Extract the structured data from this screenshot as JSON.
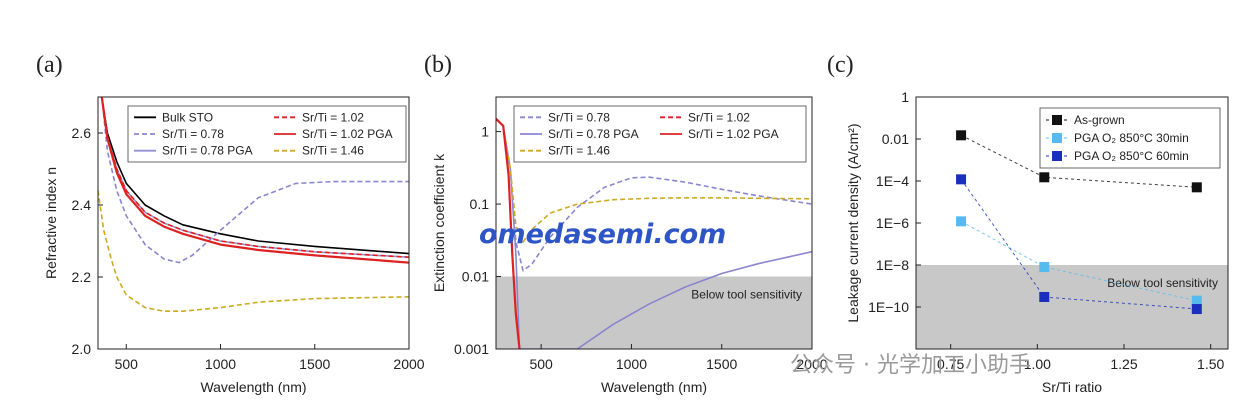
{
  "chart_data": [
    {
      "type": "line",
      "panel_label": "(a)",
      "xlabel": "Wavelength (nm)",
      "ylabel": "Refractive index n",
      "xlim": [
        350,
        2000
      ],
      "ylim": [
        2.0,
        2.7
      ],
      "xticks": [
        500,
        1000,
        1500,
        2000
      ],
      "yticks": [
        2.0,
        2.2,
        2.4,
        2.6
      ],
      "ytick_labels": [
        "2.0",
        "2.2",
        "2.4",
        "2.6"
      ],
      "legend_position": "top",
      "series": [
        {
          "name": "Bulk STO",
          "color": "#000000",
          "dash": "solid",
          "x": [
            370,
            400,
            450,
            500,
            600,
            700,
            800,
            1000,
            1200,
            1500,
            2000
          ],
          "y": [
            2.7,
            2.6,
            2.52,
            2.46,
            2.4,
            2.37,
            2.345,
            2.32,
            2.3,
            2.285,
            2.265
          ]
        },
        {
          "name": "Sr/Ti = 0.78",
          "color": "#8a85cf",
          "dash": "dashed",
          "x": [
            370,
            400,
            450,
            500,
            600,
            700,
            780,
            850,
            1000,
            1200,
            1400,
            1600,
            2000
          ],
          "y": [
            2.7,
            2.55,
            2.44,
            2.37,
            2.29,
            2.25,
            2.24,
            2.26,
            2.33,
            2.42,
            2.46,
            2.465,
            2.465
          ]
        },
        {
          "name": "Sr/Ti = 0.78 PGA",
          "color": "#9590d6",
          "dash": "solid",
          "x": [
            370,
            400,
            450,
            500,
            600,
            700,
            800,
            1000,
            1200,
            1500,
            2000
          ],
          "y": [
            2.7,
            2.59,
            2.5,
            2.44,
            2.38,
            2.35,
            2.33,
            2.3,
            2.285,
            2.27,
            2.255
          ]
        },
        {
          "name": "Sr/Ti = 1.02",
          "color": "#e02020",
          "dash": "dashed",
          "x": [
            370,
            400,
            450,
            500,
            600,
            700,
            800,
            1000,
            1200,
            1500,
            2000
          ],
          "y": [
            2.7,
            2.59,
            2.5,
            2.44,
            2.38,
            2.35,
            2.33,
            2.3,
            2.285,
            2.27,
            2.255
          ]
        },
        {
          "name": "Sr/Ti = 1.02 PGA",
          "color": "#dd2222",
          "dash": "solid",
          "x": [
            370,
            400,
            450,
            500,
            600,
            700,
            800,
            1000,
            1200,
            1500,
            2000
          ],
          "y": [
            2.7,
            2.585,
            2.49,
            2.43,
            2.37,
            2.34,
            2.32,
            2.29,
            2.275,
            2.26,
            2.24
          ]
        },
        {
          "name": "Sr/Ti = 1.46",
          "color": "#ccaa22",
          "dash": "dashed",
          "x": [
            350,
            380,
            420,
            450,
            500,
            600,
            700,
            800,
            1000,
            1200,
            1500,
            2000
          ],
          "y": [
            2.44,
            2.33,
            2.25,
            2.2,
            2.15,
            2.115,
            2.105,
            2.105,
            2.115,
            2.13,
            2.14,
            2.145
          ]
        }
      ]
    },
    {
      "type": "line",
      "panel_label": "(b)",
      "xlabel": "Wavelength (nm)",
      "ylabel": "Extinction coefficient k",
      "xlim": [
        250,
        2000
      ],
      "ylim": [
        0.001,
        3
      ],
      "yscale": "log",
      "xticks": [
        500,
        1000,
        1500,
        2000
      ],
      "yticks": [
        0.001,
        0.01,
        0.1,
        1
      ],
      "ytick_labels": [
        "0.001",
        "0.01",
        "0.1",
        "1"
      ],
      "legend_position": "top",
      "shaded_region": {
        "label": "Below tool sensitivity",
        "below": 0.01
      },
      "series": [
        {
          "name": "Sr/Ti = 0.78",
          "color": "#8a85cf",
          "dash": "dashed",
          "x": [
            250,
            290,
            330,
            360,
            400,
            450,
            550,
            700,
            850,
            1000,
            1100,
            1300,
            1500,
            1700,
            2000
          ],
          "y": [
            1.5,
            1.2,
            0.3,
            0.03,
            0.012,
            0.015,
            0.035,
            0.09,
            0.17,
            0.23,
            0.235,
            0.2,
            0.16,
            0.13,
            0.1
          ]
        },
        {
          "name": "Sr/Ti = 0.78 PGA",
          "color": "#8a85cf",
          "dash": "solid",
          "x": [
            250,
            290,
            330,
            360,
            380,
            700,
            900,
            1100,
            1300,
            1500,
            1700,
            2000
          ],
          "y": [
            1.5,
            1.2,
            0.3,
            0.02,
            0.001,
            0.001,
            0.0022,
            0.0042,
            0.0072,
            0.011,
            0.015,
            0.022
          ]
        },
        {
          "name": "Sr/Ti = 1.46",
          "color": "#ccaa22",
          "dash": "dashed",
          "x": [
            250,
            290,
            330,
            360,
            400,
            450,
            550,
            700,
            900,
            1100,
            1300,
            1500,
            1700,
            2000
          ],
          "y": [
            1.5,
            1.2,
            0.3,
            0.05,
            0.03,
            0.045,
            0.075,
            0.1,
            0.115,
            0.12,
            0.122,
            0.122,
            0.12,
            0.118
          ]
        },
        {
          "name": "Sr/Ti = 1.02",
          "color": "#e02020",
          "dash": "dashed",
          "x": [
            250,
            290,
            320,
            340,
            360,
            380
          ],
          "y": [
            1.5,
            1.2,
            0.25,
            0.02,
            0.003,
            0.001
          ]
        },
        {
          "name": "Sr/Ti = 1.02 PGA",
          "color": "#dd2222",
          "dash": "solid",
          "x": [
            250,
            290,
            320,
            340,
            360,
            380
          ],
          "y": [
            1.5,
            1.2,
            0.25,
            0.02,
            0.003,
            0.001
          ]
        }
      ]
    },
    {
      "type": "scatter",
      "panel_label": "(c)",
      "xlabel": "Sr/Ti ratio",
      "ylabel": "Leakage current density (A/cm²)",
      "xlim": [
        0.65,
        1.55
      ],
      "ylim": [
        1e-12,
        1
      ],
      "yscale": "log",
      "xticks": [
        0.75,
        1.0,
        1.25,
        1.5
      ],
      "xtick_labels": [
        "0.75",
        "1.00",
        "1.25",
        "1.50"
      ],
      "yticks": [
        1e-10,
        1e-08,
        1e-06,
        0.0001,
        0.01,
        1
      ],
      "ytick_labels": [
        "1E−10",
        "1E−8",
        "1E−6",
        "1E−4",
        "0.01",
        "1"
      ],
      "legend_position": "top-left",
      "shaded_region": {
        "label": "Below tool sensitivity",
        "below": 1e-08
      },
      "series": [
        {
          "name": "As-grown",
          "color": "#111111",
          "x": [
            0.78,
            1.02,
            1.46
          ],
          "y": [
            0.015,
            0.00015,
            5e-05
          ]
        },
        {
          "name": "PGA O₂ 850°C 30min",
          "color": "#55bbee",
          "x": [
            0.78,
            1.02,
            1.46
          ],
          "y": [
            1.2e-06,
            8e-09,
            2e-10
          ]
        },
        {
          "name": "PGA O₂ 850°C 60min",
          "color": "#1a2fbe",
          "x": [
            0.78,
            1.02,
            1.46
          ],
          "y": [
            0.00012,
            3e-10,
            8e-11
          ]
        }
      ]
    }
  ],
  "watermarks": {
    "main": "omedasemi.com",
    "secondary": "公众号 · 光学加工小助手"
  }
}
